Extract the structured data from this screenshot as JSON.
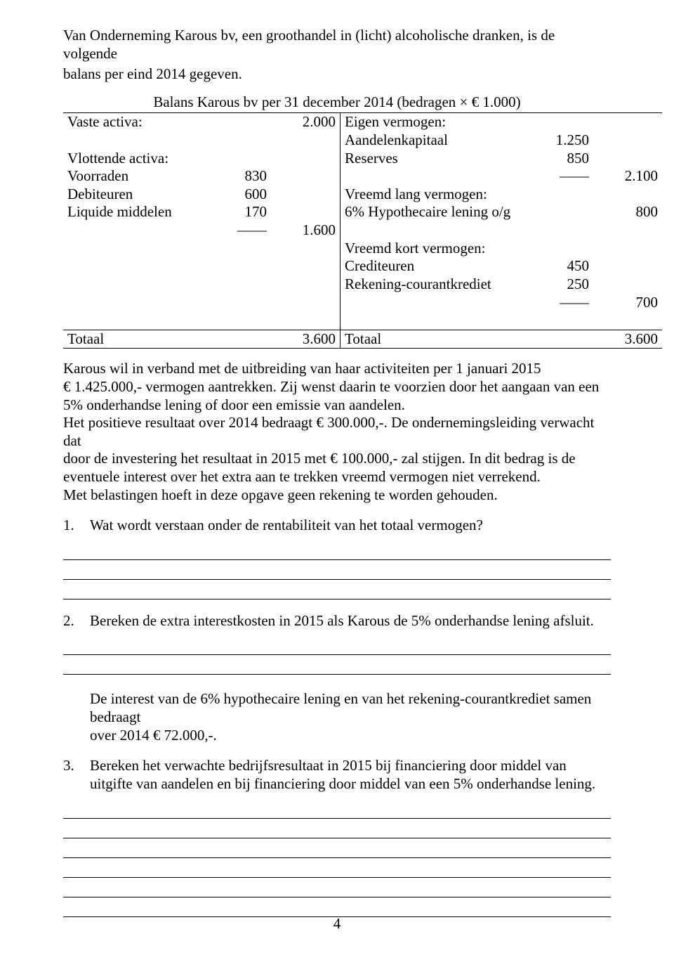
{
  "intro": {
    "line1": "Van Onderneming Karous bv, een groothandel in (licht) alcoholische dranken, is de volgende",
    "line2": "balans per eind 2014 gegeven."
  },
  "balance_caption": "Balans Karous bv per 31 december 2014 (bedragen × € 1.000)",
  "balance": {
    "left_rows": [
      {
        "label": "Vaste activa:",
        "sub": "",
        "total": "2.000"
      },
      {
        "label": "",
        "sub": "",
        "total": ""
      },
      {
        "label": "Vlottende activa:",
        "sub": "",
        "total": ""
      },
      {
        "label": "Voorraden",
        "sub": "830",
        "total": ""
      },
      {
        "label": "Debiteuren",
        "sub": "600",
        "total": ""
      },
      {
        "label": "Liquide middelen",
        "sub": "170",
        "total": ""
      },
      {
        "label": "",
        "sub": "——",
        "total": "1.600"
      },
      {
        "label": "",
        "sub": "",
        "total": ""
      },
      {
        "label": "",
        "sub": "",
        "total": ""
      },
      {
        "label": "",
        "sub": "",
        "total": ""
      }
    ],
    "right_rows": [
      {
        "label": "Eigen vermogen:",
        "sub": "",
        "total": ""
      },
      {
        "label": "Aandelenkapitaal",
        "sub": "1.250",
        "total": ""
      },
      {
        "label": "Reserves",
        "sub": "850",
        "total": ""
      },
      {
        "label": "",
        "sub": "——",
        "total": "2.100"
      },
      {
        "label": "Vreemd lang vermogen:",
        "sub": "",
        "total": ""
      },
      {
        "label": "6% Hypothecaire lening o/g",
        "sub": "",
        "total": "800"
      },
      {
        "label": "",
        "sub": "",
        "total": ""
      },
      {
        "label": "Vreemd kort vermogen:",
        "sub": "",
        "total": ""
      },
      {
        "label": "Crediteuren",
        "sub": "450",
        "total": ""
      },
      {
        "label": "Rekening-courantkrediet",
        "sub": "250",
        "total": ""
      },
      {
        "label": "",
        "sub": "——",
        "total": "700"
      }
    ],
    "totals": {
      "left_label": "Totaal",
      "left_value": "3.600",
      "right_label": "Totaal",
      "right_value": "3.600"
    }
  },
  "paragraph": {
    "l1": "Karous wil in verband met de uitbreiding van haar activiteiten per 1 januari 2015",
    "l2": "€ 1.425.000,- vermogen aantrekken. Zij wenst daarin te voorzien door het aangaan van een",
    "l3": "5% onderhandse lening of door een emissie van aandelen.",
    "l4": "Het positieve resultaat over 2014 bedraagt € 300.000,-. De ondernemingsleiding verwacht dat",
    "l5": "door de investering het resultaat in 2015 met € 100.000,- zal stijgen. In dit bedrag is de",
    "l6": "eventuele interest over het extra aan te trekken vreemd vermogen niet verrekend.",
    "l7": "Met belastingen hoeft in deze opgave geen rekening te worden gehouden."
  },
  "questions": {
    "q1": {
      "num": "1.",
      "text": "Wat wordt verstaan onder de rentabiliteit van het totaal vermogen?",
      "lines": 3
    },
    "q2": {
      "num": "2.",
      "text": "Bereken de extra interestkosten in 2015 als Karous de 5% onderhandse lening afsluit.",
      "lines": 2
    },
    "q3": {
      "num": "3.",
      "text": "Bereken het verwachte bedrijfsresultaat in 2015 bij financiering door middel van uitgifte van aandelen en bij financiering door middel van een 5% onderhandse lening.",
      "lines": 6
    }
  },
  "mid_note": {
    "l1": "De interest van de 6% hypothecaire lening en van het rekening-courantkrediet samen bedraagt",
    "l2": "over 2014 € 72.000,-."
  },
  "page_number": "4"
}
